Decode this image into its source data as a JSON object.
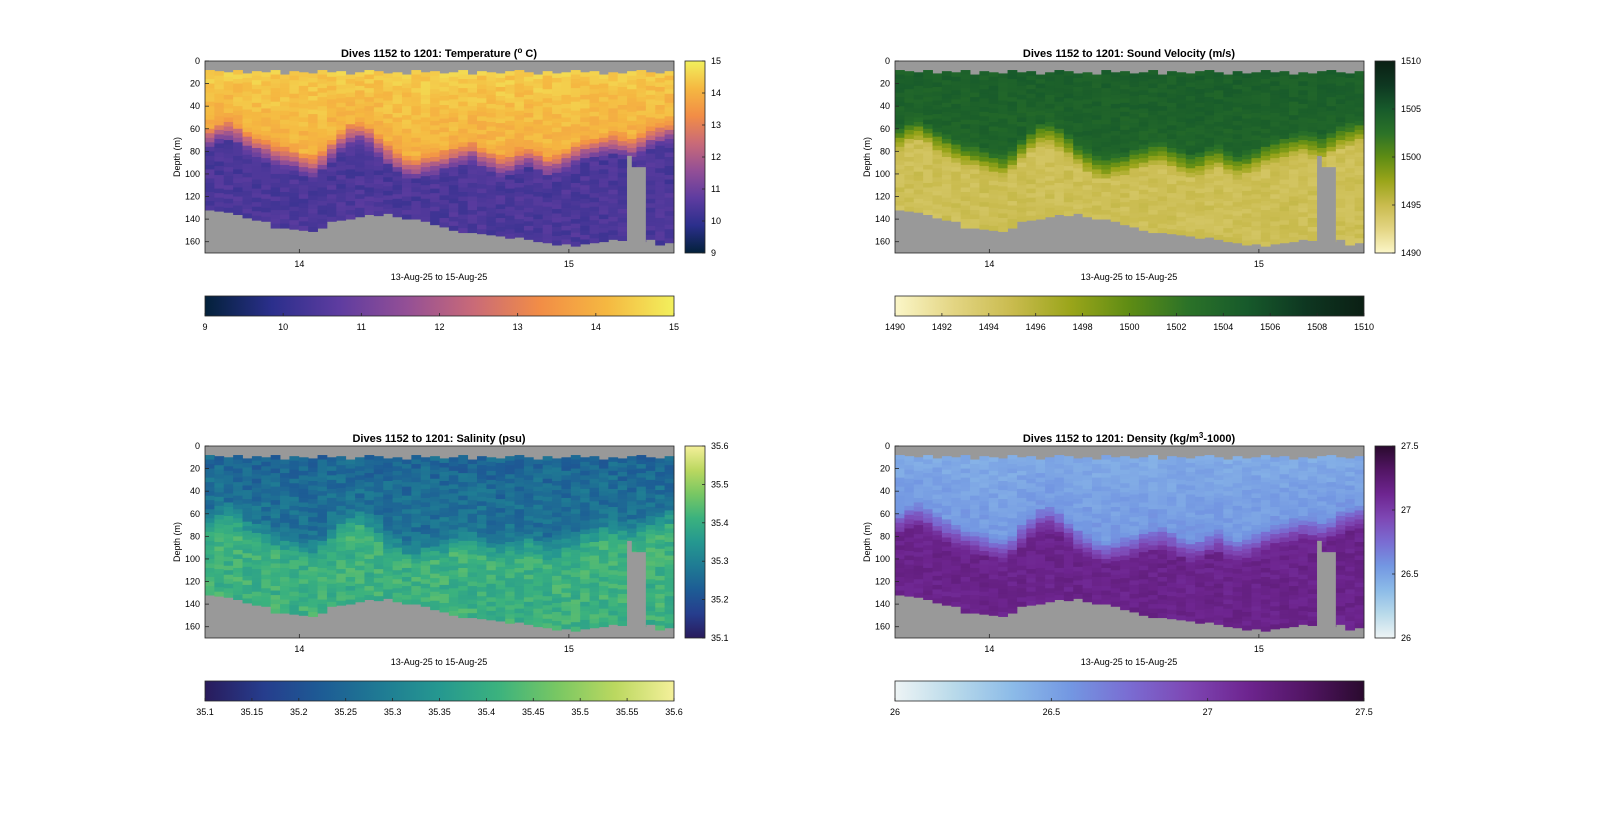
{
  "figure": {
    "background": "#ffffff",
    "mask_color": "#999999",
    "dive_range_label": "Dives 1152 to 1201"
  },
  "chart_data": [
    {
      "type": "heatmap",
      "id": "temperature",
      "title": "Dives 1152 to 1201: Temperature (",
      "title_sup": "o",
      "title_tail": " C)",
      "xlabel": "13-Aug-25 to 15-Aug-25",
      "ylabel": "Depth (m)",
      "xlim": [
        13.65,
        15.39
      ],
      "ylim": [
        170,
        0
      ],
      "x_ticks": [
        14,
        15
      ],
      "x_tick_labels": [
        "14",
        "15"
      ],
      "y_ticks": [
        0,
        20,
        40,
        60,
        80,
        100,
        120,
        140,
        160
      ],
      "clim": [
        9,
        15
      ],
      "colorbar_ticks": [
        9,
        10,
        11,
        12,
        13,
        14,
        15
      ],
      "colorbar_tick_labels": [
        "9",
        "10",
        "11",
        "12",
        "13",
        "14",
        "15"
      ],
      "colormap": [
        "#03213a",
        "#2b2f8c",
        "#5e3ca0",
        "#934f96",
        "#c96a78",
        "#f28d46",
        "#f5b841",
        "#f2f05d"
      ],
      "profile": {
        "surface": 14.5,
        "mixed": 14.0,
        "deep": 10.4,
        "thermocline_width": 22
      },
      "noise_amplitude": 0.25
    },
    {
      "type": "heatmap",
      "id": "sound_velocity",
      "title": "Dives 1152 to 1201: Sound Velocity (m/s)",
      "xlabel": "13-Aug-25 to 15-Aug-25",
      "ylabel": "Depth (m)",
      "xlim": [
        13.65,
        15.39
      ],
      "ylim": [
        170,
        0
      ],
      "x_ticks": [
        14,
        15
      ],
      "x_tick_labels": [
        "14",
        "15"
      ],
      "y_ticks": [
        0,
        20,
        40,
        60,
        80,
        100,
        120,
        140,
        160
      ],
      "clim": [
        1490,
        1510
      ],
      "colorbar_ticks": [
        1490,
        1495,
        1500,
        1505,
        1510
      ],
      "colorbar_tick_labels": [
        "1490",
        "1495",
        "1500",
        "1505",
        "1510"
      ],
      "h_colorbar_ticks": [
        1490,
        1492,
        1494,
        1496,
        1498,
        1500,
        1502,
        1504,
        1506,
        1508,
        1510
      ],
      "h_colorbar_tick_labels": [
        "1490",
        "1492",
        "1494",
        "1496",
        "1498",
        "1500",
        "1502",
        "1504",
        "1506",
        "1508",
        "1510"
      ],
      "colormap": [
        "#fbf6c8",
        "#e3d583",
        "#c9bb4e",
        "#9aa51a",
        "#5e8c14",
        "#2b7228",
        "#175a2b",
        "#0e3721",
        "#0b1f14"
      ],
      "profile": {
        "surface": 1504.5,
        "mixed": 1504.0,
        "deep": 1494.6,
        "thermocline_width": 22
      },
      "noise_amplitude": 0.6
    },
    {
      "type": "heatmap",
      "id": "salinity",
      "title": "Dives 1152 to 1201: Salinity (psu)",
      "xlabel": "13-Aug-25 to 15-Aug-25",
      "ylabel": "Depth (m)",
      "xlim": [
        13.65,
        15.39
      ],
      "ylim": [
        170,
        0
      ],
      "x_ticks": [
        14,
        15
      ],
      "x_tick_labels": [
        "14",
        "15"
      ],
      "y_ticks": [
        0,
        20,
        40,
        60,
        80,
        100,
        120,
        140,
        160
      ],
      "clim": [
        35.1,
        35.6
      ],
      "colorbar_ticks": [
        35.1,
        35.2,
        35.3,
        35.4,
        35.5,
        35.6
      ],
      "colorbar_tick_labels": [
        "35.1",
        "35.2",
        "35.3",
        "35.4",
        "35.5",
        "35.6"
      ],
      "h_colorbar_ticks": [
        35.1,
        35.15,
        35.2,
        35.25,
        35.3,
        35.35,
        35.4,
        35.45,
        35.5,
        35.55,
        35.6
      ],
      "h_colorbar_tick_labels": [
        "35.1",
        "35.15",
        "35.2",
        "35.25",
        "35.3",
        "35.35",
        "35.4",
        "35.45",
        "35.5",
        "35.55",
        "35.6"
      ],
      "colormap": [
        "#291b5c",
        "#263d8d",
        "#1d5c95",
        "#1f7b94",
        "#259890",
        "#3bb27e",
        "#78c763",
        "#bbd860",
        "#f4f09a"
      ],
      "profile": {
        "surface": 35.24,
        "mixed": 35.27,
        "deep": 35.41,
        "thermocline_width": 22
      },
      "noise_amplitude": 0.035
    },
    {
      "type": "heatmap",
      "id": "density",
      "title": "Dives 1152 to 1201: Density (kg/m",
      "title_sup": "3",
      "title_tail": "-1000)",
      "xlabel": "13-Aug-25 to 15-Aug-25",
      "ylabel": "Depth (m)",
      "xlim": [
        13.65,
        15.39
      ],
      "ylim": [
        170,
        0
      ],
      "x_ticks": [
        14,
        15
      ],
      "x_tick_labels": [
        "14",
        "15"
      ],
      "y_ticks": [
        0,
        20,
        40,
        60,
        80,
        100,
        120,
        140,
        160
      ],
      "clim": [
        26,
        27.5
      ],
      "colorbar_ticks": [
        26,
        26.5,
        27,
        27.5
      ],
      "colorbar_tick_labels": [
        "26",
        "26.5",
        "27",
        "27.5"
      ],
      "colormap": [
        "#eef4f5",
        "#b9daea",
        "#8cbbe8",
        "#7397e2",
        "#7a6cd2",
        "#7e47b4",
        "#6e2590",
        "#521564",
        "#2a0a2e"
      ],
      "profile": {
        "surface": 26.45,
        "mixed": 26.55,
        "deep": 27.15,
        "thermocline_width": 22
      },
      "noise_amplitude": 0.05
    }
  ],
  "sections": {
    "dive_count": 50,
    "x_start": 13.65,
    "x_end": 15.39,
    "bottom_depth": [
      130,
      131,
      133,
      135,
      137,
      140,
      142,
      145,
      147,
      148,
      148,
      148,
      146,
      142,
      140,
      138,
      136,
      134,
      134,
      134,
      135,
      138,
      140,
      142,
      144,
      146,
      148,
      150,
      151,
      152,
      153,
      154,
      155,
      156,
      157,
      158,
      159,
      160,
      161,
      161,
      160,
      159,
      158,
      157,
      156,
      155,
      157,
      158,
      160,
      160
    ],
    "thermocline_depth": [
      55,
      50,
      48,
      52,
      58,
      62,
      66,
      70,
      72,
      75,
      78,
      80,
      75,
      66,
      58,
      52,
      50,
      55,
      62,
      70,
      76,
      80,
      82,
      80,
      78,
      75,
      72,
      70,
      68,
      72,
      76,
      80,
      78,
      74,
      72,
      76,
      80,
      78,
      74,
      70,
      66,
      64,
      62,
      60,
      62,
      64,
      60,
      55,
      52,
      50
    ],
    "top_start_depth": [
      8,
      9,
      10,
      8,
      11,
      9,
      10,
      8,
      12,
      9,
      10,
      11,
      8,
      10,
      9,
      12,
      10,
      8,
      9,
      11,
      10,
      12,
      8,
      10,
      9,
      11,
      10,
      8,
      12,
      9,
      10,
      11,
      9,
      8,
      10,
      12,
      9,
      11,
      10,
      8,
      10,
      9,
      12,
      10,
      11,
      9,
      8,
      10,
      11,
      9
    ],
    "spike": {
      "dive_from": 45,
      "dive_to": 46,
      "top_depth": 94
    },
    "spike_narrow": {
      "dive_from": 45,
      "dive_to": 45,
      "top_depth": 84
    }
  }
}
